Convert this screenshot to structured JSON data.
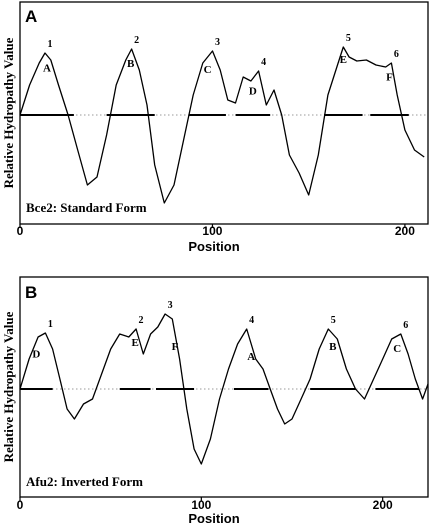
{
  "y_axis_label": "Relative Hydropathy Value",
  "x_axis_label": "Position",
  "chart_data": [
    {
      "type": "line",
      "panel_letter": "A",
      "caption": "Bce2: Standard Form",
      "xlabel": "Position",
      "ylabel": "Relative Hydropathy Value",
      "xlim": [
        0,
        212
      ],
      "x_ticks": [
        "0",
        "100",
        "200"
      ],
      "x_tick_values": [
        0,
        100,
        200
      ],
      "baseline": 0,
      "grid": false,
      "x": [
        0,
        5,
        10,
        13,
        16,
        20,
        25,
        30,
        35,
        40,
        45,
        50,
        55,
        58,
        62,
        66,
        70,
        75,
        80,
        85,
        90,
        95,
        100,
        104,
        108,
        112,
        116,
        120,
        124,
        128,
        132,
        136,
        140,
        145,
        150,
        155,
        160,
        165,
        168,
        171,
        175,
        180,
        185,
        190,
        193,
        196,
        200,
        205,
        210
      ],
      "y": [
        0.0,
        0.3,
        0.52,
        0.62,
        0.55,
        0.3,
        0.0,
        -0.35,
        -0.7,
        -0.62,
        -0.2,
        0.3,
        0.55,
        0.66,
        0.45,
        0.1,
        -0.5,
        -0.88,
        -0.7,
        -0.25,
        0.2,
        0.52,
        0.64,
        0.45,
        0.15,
        0.12,
        0.38,
        0.34,
        0.44,
        0.1,
        0.25,
        0.0,
        -0.4,
        -0.58,
        -0.8,
        -0.4,
        0.2,
        0.5,
        0.68,
        0.58,
        0.54,
        0.55,
        0.5,
        0.48,
        0.52,
        0.2,
        -0.15,
        -0.35,
        -0.42
      ],
      "peaks": [
        {
          "number": "1",
          "x": 13
        },
        {
          "number": "2",
          "x": 58
        },
        {
          "number": "3",
          "x": 100
        },
        {
          "number": "4",
          "x": 124
        },
        {
          "number": "5",
          "x": 168
        },
        {
          "number": "6",
          "x": 193
        }
      ],
      "segments": [
        {
          "label": "A",
          "start": 0,
          "end": 28
        },
        {
          "label": "B",
          "start": 45,
          "end": 70
        },
        {
          "label": "C",
          "start": 88,
          "end": 107
        },
        {
          "label": "D",
          "start": 112,
          "end": 130
        },
        {
          "label": "E",
          "start": 158,
          "end": 178
        },
        {
          "label": "F",
          "start": 182,
          "end": 202
        }
      ]
    },
    {
      "type": "line",
      "panel_letter": "B",
      "caption": "Afu2: Inverted Form",
      "xlabel": "Position",
      "ylabel": "Relative Hydropathy Value",
      "xlim": [
        0,
        225
      ],
      "x_ticks": [
        "0",
        "100",
        "200"
      ],
      "x_tick_values": [
        0,
        100,
        200
      ],
      "baseline": 0,
      "grid": false,
      "x": [
        0,
        5,
        10,
        14,
        18,
        22,
        26,
        30,
        35,
        40,
        45,
        50,
        55,
        60,
        64,
        68,
        72,
        76,
        80,
        84,
        88,
        92,
        96,
        100,
        105,
        110,
        115,
        120,
        125,
        130,
        134,
        138,
        142,
        146,
        150,
        155,
        160,
        165,
        170,
        175,
        180,
        185,
        190,
        195,
        200,
        205,
        210,
        214,
        218,
        222,
        225
      ],
      "y": [
        0.0,
        0.3,
        0.52,
        0.56,
        0.4,
        0.1,
        -0.2,
        -0.3,
        -0.15,
        -0.1,
        0.15,
        0.4,
        0.55,
        0.52,
        0.6,
        0.35,
        0.55,
        0.62,
        0.75,
        0.7,
        0.3,
        -0.2,
        -0.6,
        -0.75,
        -0.5,
        -0.1,
        0.2,
        0.45,
        0.6,
        0.3,
        0.2,
        0.0,
        -0.2,
        -0.35,
        -0.3,
        -0.1,
        0.1,
        0.4,
        0.6,
        0.5,
        0.2,
        0.0,
        -0.1,
        0.1,
        0.3,
        0.5,
        0.55,
        0.35,
        0.1,
        -0.1,
        0.05
      ],
      "peaks": [
        {
          "number": "1",
          "x": 14
        },
        {
          "number": "2",
          "x": 64
        },
        {
          "number": "3",
          "x": 80
        },
        {
          "number": "4",
          "x": 125
        },
        {
          "number": "5",
          "x": 170
        },
        {
          "number": "6",
          "x": 210
        }
      ],
      "segments": [
        {
          "label": "D",
          "start": 0,
          "end": 18
        },
        {
          "label": "E",
          "start": 55,
          "end": 72
        },
        {
          "label": "F",
          "start": 75,
          "end": 96
        },
        {
          "label": "A",
          "start": 118,
          "end": 137
        },
        {
          "label": "B",
          "start": 160,
          "end": 185
        },
        {
          "label": "C",
          "start": 196,
          "end": 220
        }
      ]
    }
  ]
}
